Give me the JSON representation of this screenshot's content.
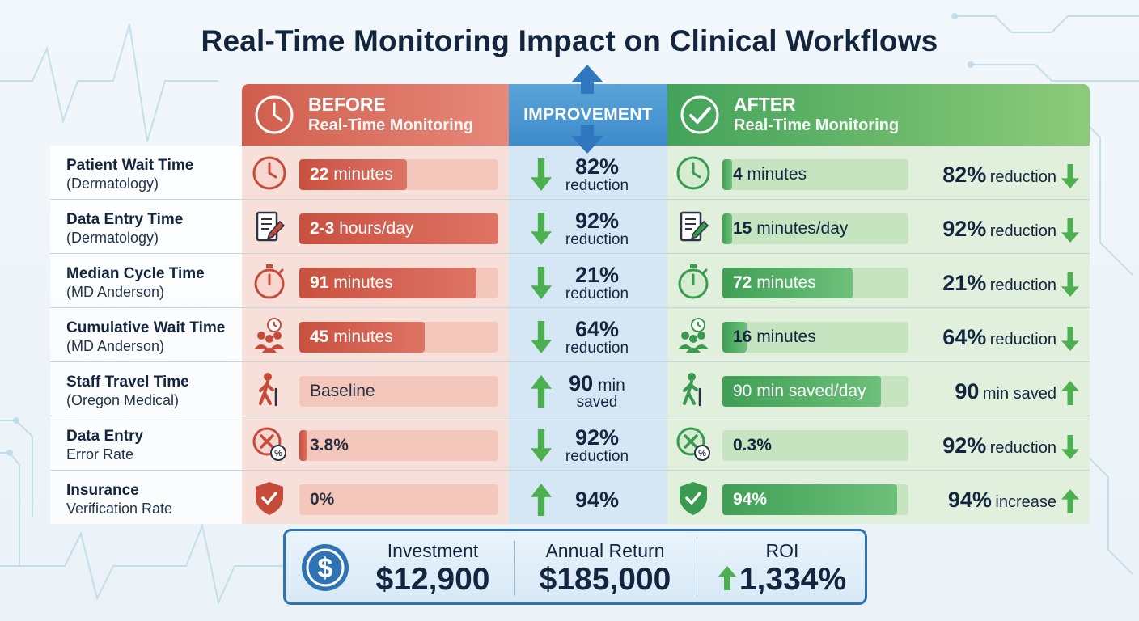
{
  "title": "Real-Time Monitoring Impact on Clinical Workflows",
  "headers": {
    "before": {
      "line1": "BEFORE",
      "line2": "Real-Time Monitoring"
    },
    "improvement": "IMPROVEMENT",
    "after": {
      "line1": "AFTER",
      "line2": "Real-Time Monitoring"
    }
  },
  "colors": {
    "before_accent": "#cf5d4c",
    "improvement_accent": "#3f8ccb",
    "after_accent": "#43a35a",
    "arrow_green": "#4caf50",
    "roi_border": "#2e74b5"
  },
  "rows": [
    {
      "label1": "Patient Wait Time",
      "label2": "(Dermatology)",
      "before_icon": "clock-icon",
      "before_num": "22",
      "before_unit": " minutes",
      "before_level": 0.54,
      "improvement_dir": "down",
      "improvement_value": "82%",
      "improvement_unit": "",
      "improvement_sub": "reduction",
      "after_icon": "clock-icon",
      "after_num": "4",
      "after_unit": " minutes",
      "after_level": 0.05,
      "result_value": "82%",
      "result_word": "reduction",
      "result_dir": "down"
    },
    {
      "label1": "Data Entry Time",
      "label2": "(Dermatology)",
      "before_icon": "document-pencil-icon",
      "before_num": "2-3",
      "before_unit": " hours/day",
      "before_level": 1.0,
      "improvement_dir": "down",
      "improvement_value": "92%",
      "improvement_unit": "",
      "improvement_sub": "reduction",
      "after_icon": "document-pencil-icon",
      "after_num": "15",
      "after_unit": " minutes/day",
      "after_level": 0.05,
      "result_value": "92%",
      "result_word": "reduction",
      "result_dir": "down"
    },
    {
      "label1": "Median Cycle Time",
      "label2": "(MD Anderson)",
      "before_icon": "stopwatch-icon",
      "before_num": "91",
      "before_unit": " minutes",
      "before_level": 0.89,
      "improvement_dir": "down",
      "improvement_value": "21%",
      "improvement_unit": "",
      "improvement_sub": "reduction",
      "after_icon": "stopwatch-icon",
      "after_num": "72",
      "after_unit": " minutes",
      "after_level": 0.7,
      "result_value": "21%",
      "result_word": "reduction",
      "result_dir": "down"
    },
    {
      "label1": "Cumulative Wait Time",
      "label2": "(MD Anderson)",
      "before_icon": "people-clock-icon",
      "before_num": "45",
      "before_unit": " minutes",
      "before_level": 0.63,
      "improvement_dir": "down",
      "improvement_value": "64%",
      "improvement_unit": "",
      "improvement_sub": "reduction",
      "after_icon": "people-clock-icon",
      "after_num": "16",
      "after_unit": " minutes",
      "after_level": 0.13,
      "result_value": "64%",
      "result_word": "reduction",
      "result_dir": "down"
    },
    {
      "label1": "Staff Travel Time",
      "label2": "(Oregon Medical)",
      "before_icon": "walking-person-icon",
      "before_num": "",
      "before_unit": "Baseline",
      "before_level": 0,
      "improvement_dir": "up",
      "improvement_value": "90",
      "improvement_unit": " min",
      "improvement_sub": "saved",
      "after_icon": "walking-person-icon",
      "after_num": "",
      "after_unit": "90 min saved/day",
      "after_level": 0.85,
      "result_value": "90",
      "result_word": "min saved",
      "result_dir": "up"
    },
    {
      "label1": "Data Entry",
      "label2": "Error Rate",
      "before_icon": "error-percent-icon",
      "before_num": "3.8%",
      "before_unit": "",
      "before_level": 0.04,
      "improvement_dir": "down",
      "improvement_value": "92%",
      "improvement_unit": "",
      "improvement_sub": "reduction",
      "after_icon": "error-percent-icon",
      "after_num": "0.3%",
      "after_unit": "",
      "after_level": 0,
      "result_value": "92%",
      "result_word": "reduction",
      "result_dir": "down"
    },
    {
      "label1": "Insurance",
      "label2": "Verification Rate",
      "before_icon": "shield-check-icon",
      "before_num": "0%",
      "before_unit": "",
      "before_level": 0,
      "improvement_dir": "up",
      "improvement_value": "94%",
      "improvement_unit": "",
      "improvement_sub": "",
      "after_icon": "shield-check-icon",
      "after_num": "94%",
      "after_unit": "",
      "after_level": 0.94,
      "result_value": "94%",
      "result_word": "increase",
      "result_dir": "up"
    }
  ],
  "roi": {
    "icon": "dollar-icon",
    "investment_label": "Investment",
    "investment_value": "$12,900",
    "return_label": "Annual Return",
    "return_value": "$185,000",
    "roi_label": "ROI",
    "roi_value": "1,334%"
  }
}
